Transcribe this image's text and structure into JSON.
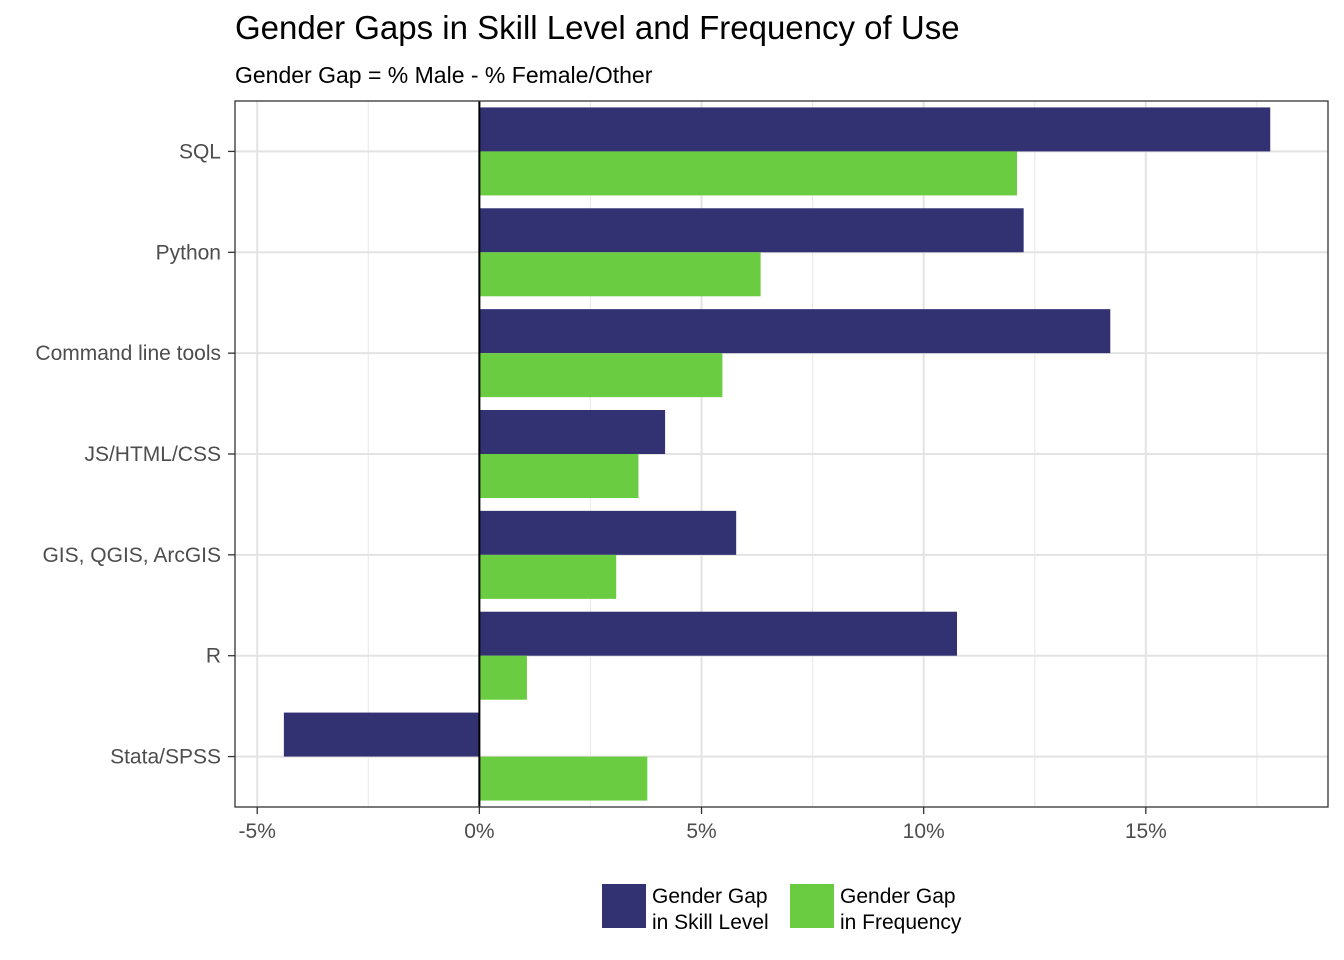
{
  "chart_data": {
    "type": "bar",
    "orientation": "horizontal",
    "title": "Gender Gaps in Skill Level and Frequency of Use",
    "subtitle": "Gender Gap = % Male - % Female/Other",
    "categories": [
      "SQL",
      "Python",
      "Command line tools",
      "JS/HTML/CSS",
      "GIS, QGIS, ArcGIS",
      "R",
      "Stata/SPSS"
    ],
    "series": [
      {
        "name": "Gender Gap\nin Skill Level",
        "color": "#323272",
        "values": [
          17.8,
          12.25,
          14.2,
          4.18,
          5.78,
          10.75,
          -4.4
        ]
      },
      {
        "name": "Gender Gap\nin Frequency",
        "color": "#6acc40",
        "values": [
          12.1,
          6.33,
          5.47,
          3.58,
          3.08,
          1.07,
          3.78
        ]
      }
    ],
    "xlim": [
      -5.5,
      19.1
    ],
    "xticks": [
      -5,
      0,
      5,
      10,
      15
    ],
    "xtick_labels": [
      "-5%",
      "0%",
      "5%",
      "10%",
      "15%"
    ],
    "grid": true,
    "legend_position": "bottom"
  }
}
